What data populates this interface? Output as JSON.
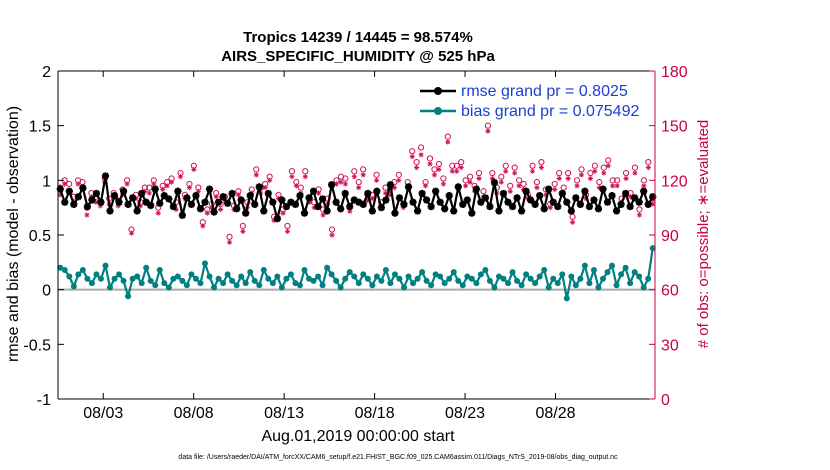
{
  "chart_data": {
    "type": "line",
    "title": "Tropics 14239 / 14445 = 98.574%",
    "subtitle": "AIRS_SPECIFIC_HUMIDITY @ 525 hPa",
    "xlabel": "Aug.01,2019 00:00:00 start",
    "ylabel": "rmse and bias (model - observation)",
    "ylabel_right": "# of obs: o=possible; ∗=evaluated",
    "xlim": [
      0,
      33
    ],
    "ylim": [
      -1,
      2
    ],
    "ylim_right": [
      0,
      180
    ],
    "x_ticks": [
      2.5,
      7.5,
      12.5,
      17.5,
      22.5,
      27.5
    ],
    "x_tick_labels": [
      "08/03",
      "08/08",
      "08/13",
      "08/18",
      "08/23",
      "08/28"
    ],
    "y_ticks": [
      -1,
      -0.5,
      0,
      0.5,
      1,
      1.5,
      2
    ],
    "y_tick_labels": [
      "-1",
      "-0.5",
      "0",
      "0.5",
      "1",
      "1.5",
      "2"
    ],
    "y_ticks_right": [
      0,
      30,
      60,
      90,
      120,
      150,
      180
    ],
    "y_tick_labels_right": [
      "0",
      "30",
      "60",
      "90",
      "120",
      "150",
      "180"
    ],
    "legend_position": "top-right",
    "colors": {
      "rmse": "#000000",
      "bias": "#008080",
      "obs": "#d0105a",
      "zero": "#aaaaaa",
      "right_axis": "#c8004a",
      "legend_text": "#1a3fd6"
    },
    "series": [
      {
        "name": "rmse grand pr = 0.8025",
        "values": [
          0.92,
          0.8,
          0.9,
          0.78,
          0.85,
          0.93,
          0.76,
          0.82,
          0.88,
          0.8,
          1.04,
          0.72,
          0.86,
          0.8,
          0.9,
          0.78,
          0.84,
          0.72,
          0.88,
          0.8,
          0.77,
          0.92,
          0.79,
          0.86,
          0.83,
          0.76,
          0.9,
          0.68,
          0.84,
          0.78,
          0.86,
          0.74,
          0.8,
          0.92,
          0.71,
          0.8,
          0.85,
          0.79,
          0.88,
          0.74,
          0.82,
          0.7,
          0.86,
          0.78,
          0.94,
          0.72,
          0.88,
          0.8,
          0.65,
          0.82,
          0.76,
          0.8,
          0.78,
          0.86,
          0.7,
          0.84,
          0.9,
          0.76,
          0.83,
          0.72,
          0.96,
          0.8,
          0.74,
          0.88,
          0.76,
          0.82,
          0.8,
          0.78,
          0.88,
          0.72,
          0.9,
          0.75,
          0.82,
          0.96,
          0.7,
          0.84,
          0.78,
          0.94,
          0.8,
          0.72,
          0.88,
          0.82,
          0.76,
          0.9,
          0.8,
          0.74,
          0.86,
          0.72,
          0.94,
          0.78,
          0.82,
          0.7,
          0.92,
          0.8,
          0.84,
          0.76,
          0.98,
          0.72,
          0.88,
          0.8,
          0.76,
          0.84,
          0.72,
          0.9,
          0.82,
          0.78,
          0.86,
          0.74,
          0.92,
          0.8,
          0.76,
          0.88,
          0.8,
          0.72,
          0.84,
          0.78,
          0.9,
          0.76,
          0.82,
          0.74,
          0.92,
          0.8,
          0.86,
          0.72,
          0.78,
          0.88,
          0.76,
          0.84,
          0.8,
          0.9,
          0.78,
          0.85
        ]
      },
      {
        "name": "bias grand pr = 0.075492",
        "values": [
          0.2,
          0.18,
          0.12,
          0.03,
          0.14,
          0.18,
          0.1,
          0.06,
          0.14,
          0.1,
          0.22,
          0.02,
          0.1,
          0.14,
          0.08,
          -0.06,
          0.1,
          0.12,
          0.06,
          0.2,
          0.08,
          0.04,
          0.18,
          0.06,
          0.02,
          0.1,
          0.12,
          0.08,
          0.04,
          0.14,
          0.1,
          0.06,
          0.24,
          0.12,
          0.02,
          0.1,
          0.06,
          0.14,
          0.08,
          0.04,
          0.12,
          0.06,
          0.16,
          0.08,
          0.04,
          0.18,
          0.1,
          0.06,
          0.12,
          0.02,
          0.1,
          0.14,
          0.06,
          0.04,
          0.18,
          0.1,
          0.08,
          0.12,
          0.04,
          0.2,
          0.14,
          0.08,
          0.02,
          0.1,
          0.16,
          0.12,
          0.06,
          0.14,
          0.1,
          0.04,
          0.12,
          0.08,
          0.18,
          0.06,
          0.14,
          0.1,
          0.02,
          0.12,
          0.06,
          0.1,
          0.16,
          0.08,
          0.04,
          0.14,
          0.12,
          0.06,
          0.1,
          0.16,
          0.08,
          0.04,
          0.12,
          0.1,
          0.06,
          0.14,
          0.18,
          0.08,
          0.02,
          0.12,
          0.1,
          0.06,
          0.16,
          0.08,
          0.04,
          0.14,
          0.1,
          0.06,
          0.12,
          0.18,
          0.02,
          0.1,
          0.06,
          0.14,
          -0.08,
          0.12,
          0.04,
          0.1,
          0.22,
          0.06,
          0.18,
          0.02,
          0.1,
          0.16,
          0.22,
          0.04,
          0.14,
          0.2,
          0.06,
          0.16,
          0.12,
          0.02,
          0.1,
          0.38
        ]
      }
    ],
    "obs_possible": [
      116,
      120,
      118,
      111,
      120,
      119,
      105,
      113,
      111,
      108,
      121,
      110,
      113,
      109,
      115,
      120,
      93,
      112,
      108,
      116,
      116,
      120,
      105,
      117,
      119,
      121,
      108,
      124,
      112,
      118,
      128,
      116,
      97,
      104,
      107,
      113,
      107,
      111,
      89,
      106,
      114,
      95,
      108,
      115,
      126,
      116,
      118,
      122,
      100,
      112,
      104,
      95,
      125,
      119,
      116,
      125,
      110,
      108,
      115,
      104,
      110,
      93,
      120,
      122,
      121,
      106,
      125,
      119,
      126,
      112,
      112,
      123,
      108,
      116,
      115,
      119,
      123,
      107,
      119,
      136,
      130,
      138,
      119,
      132,
      126,
      129,
      121,
      144,
      128,
      128,
      130,
      120,
      122,
      117,
      124,
      114,
      150,
      124,
      116,
      122,
      128,
      117,
      127,
      120,
      118,
      112,
      128,
      119,
      130,
      115,
      107,
      118,
      124,
      116,
      124,
      100,
      120,
      126,
      112,
      124,
      128,
      119,
      127,
      131,
      120,
      120,
      110,
      124,
      113,
      127,
      104,
      120,
      130,
      110
    ],
    "obs_evaluated": [
      112,
      118,
      114,
      108,
      118,
      116,
      101,
      111,
      108,
      106,
      119,
      107,
      111,
      106,
      112,
      118,
      91,
      110,
      106,
      114,
      113,
      118,
      102,
      115,
      117,
      119,
      104,
      122,
      110,
      116,
      126,
      114,
      95,
      102,
      105,
      111,
      104,
      109,
      86,
      104,
      112,
      92,
      105,
      113,
      123,
      113,
      116,
      120,
      98,
      110,
      102,
      92,
      122,
      117,
      113,
      122,
      108,
      105,
      113,
      101,
      107,
      90,
      118,
      119,
      118,
      103,
      122,
      116,
      123,
      109,
      110,
      120,
      106,
      113,
      112,
      116,
      120,
      105,
      116,
      133,
      127,
      134,
      117,
      129,
      123,
      126,
      118,
      141,
      125,
      125,
      127,
      117,
      119,
      114,
      121,
      111,
      147,
      121,
      113,
      119,
      125,
      114,
      124,
      117,
      115,
      110,
      125,
      116,
      127,
      112,
      105,
      115,
      121,
      113,
      121,
      97,
      117,
      123,
      110,
      121,
      125,
      116,
      124,
      128,
      117,
      117,
      108,
      121,
      111,
      124,
      101,
      117,
      127,
      107
    ]
  },
  "footer": "data file: /Users/raeder/DAI/ATM_forcXX/CAM6_setup/f.e21.FHIST_BGC.f09_025.CAM6assim.011/Diags_NTrS_2019-08/obs_diag_output.nc"
}
